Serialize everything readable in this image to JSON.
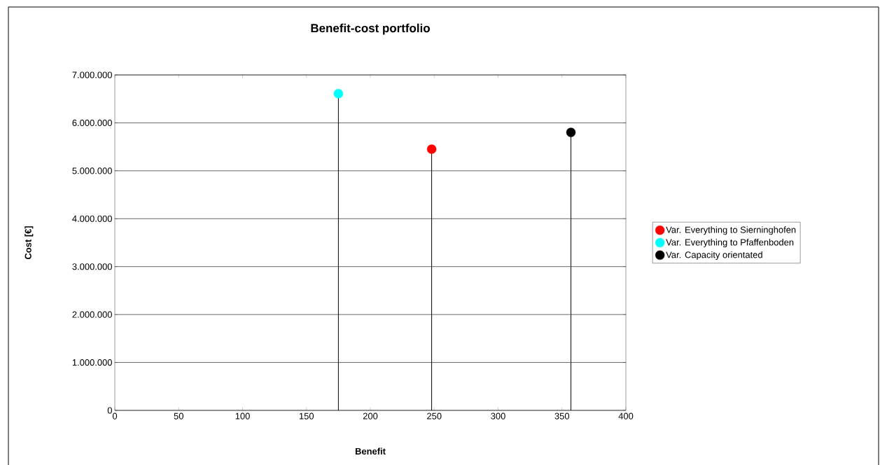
{
  "chart_data": {
    "type": "lollipop",
    "title": "Benefit-cost portfolio",
    "xlabel": "Benefit",
    "ylabel": "Cost [€]",
    "series": [
      {
        "name": "Var. Everything to Sierninghofen",
        "color": "#ff0000",
        "x": [
          248
        ],
        "values": [
          5450000
        ]
      },
      {
        "name": "Var. Everything to Pfaffenboden",
        "color": "#00ffff",
        "x": [
          175
        ],
        "values": [
          6610000
        ]
      },
      {
        "name": "Var. Capacity orientated",
        "color": "#000000",
        "x": [
          357
        ],
        "values": [
          5800000
        ]
      }
    ],
    "xlim": [
      0,
      400
    ],
    "xticks": [
      0,
      50,
      100,
      150,
      200,
      250,
      300,
      350,
      400
    ],
    "ylim": [
      0,
      7000000
    ],
    "yticks": [
      0,
      {
        "value": 1000000,
        "label": "1.000.000"
      },
      {
        "value": 2000000,
        "label": "2.000.000"
      },
      {
        "value": 3000000,
        "label": "3.000.000"
      },
      {
        "value": 4000000,
        "label": "4.000.000"
      },
      {
        "value": 5000000,
        "label": "5.000.000"
      },
      {
        "value": 6000000,
        "label": "6.000.000"
      },
      {
        "value": 7000000,
        "label": "7.000.000"
      }
    ],
    "grid": "y",
    "legend": "right",
    "marker": "circle"
  }
}
